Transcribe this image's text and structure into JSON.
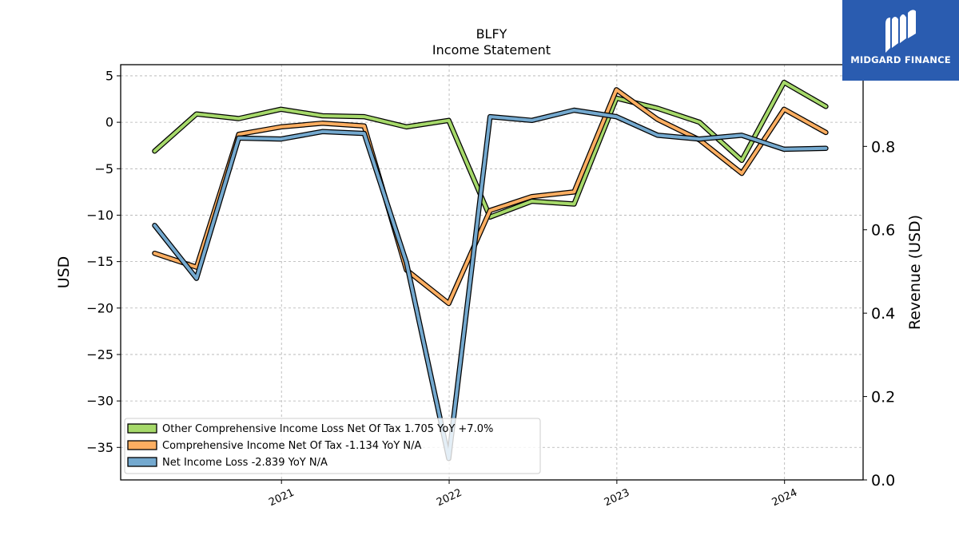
{
  "logo": {
    "text": "MIDGARD FINANCE",
    "icon": "midgard-logo-icon",
    "bg_color": "#2a5cb0"
  },
  "chart_data": {
    "type": "line",
    "title": "BLFY",
    "subtitle": "Income Statement",
    "ylabel": "USD",
    "ylabel_right": "Revenue (USD)",
    "ylim": [
      -38.5,
      6.2
    ],
    "ylim_right": [
      0.0,
      0.996
    ],
    "yticks": [
      5,
      0,
      -5,
      -10,
      -15,
      -20,
      -25,
      -30,
      -35
    ],
    "yticks_right": [
      0.0,
      0.2,
      0.4,
      0.6,
      0.8
    ],
    "xlim": [
      "2020-01-17",
      "2024-06-20"
    ],
    "xticks": [
      {
        "label": "2021",
        "x": "2021-01-01"
      },
      {
        "label": "2022",
        "x": "2022-01-01"
      },
      {
        "label": "2023",
        "x": "2023-01-01"
      },
      {
        "label": "2024",
        "x": "2024-01-01"
      }
    ],
    "grid": true,
    "legend_position": "lower-left",
    "x": [
      "2020-03-31",
      "2020-06-30",
      "2020-09-30",
      "2020-12-31",
      "2021-03-31",
      "2021-06-30",
      "2021-09-30",
      "2021-12-31",
      "2022-03-31",
      "2022-06-30",
      "2022-09-30",
      "2022-12-31",
      "2023-03-31",
      "2023-06-30",
      "2023-09-30",
      "2023-12-31",
      "2024-03-31"
    ],
    "series": [
      {
        "name": "Other Comprehensive Income Loss Net Of Tax",
        "legend_label": "Other Comprehensive Income Loss Net Of Tax  1.705 YoY +7.0%",
        "color": "#a6d96a",
        "values": [
          -3.1,
          0.9,
          0.4,
          1.4,
          0.7,
          0.6,
          -0.5,
          0.2,
          -10.2,
          -8.5,
          -8.8,
          2.6,
          1.5,
          0.0,
          -4.1,
          4.3,
          1.7
        ]
      },
      {
        "name": "Comprehensive Income Net Of Tax",
        "legend_label": "Comprehensive Income Net Of Tax  -1.134 YoY N/A",
        "color": "#fdae61",
        "values": [
          -14.1,
          -15.6,
          -1.3,
          -0.5,
          -0.1,
          -0.4,
          -15.9,
          -19.5,
          -9.5,
          -8.0,
          -7.5,
          3.5,
          0.3,
          -1.9,
          -5.5,
          1.4,
          -1.1
        ]
      },
      {
        "name": "Net Income Loss",
        "legend_label": "Net Income Loss  -2.839 YoY N/A",
        "color": "#74a9cf",
        "values": [
          -11.1,
          -16.8,
          -1.7,
          -1.8,
          -1.0,
          -1.2,
          -15.1,
          -36.2,
          0.6,
          0.2,
          1.3,
          0.6,
          -1.4,
          -1.8,
          -1.4,
          -2.9,
          -2.8
        ]
      }
    ]
  }
}
